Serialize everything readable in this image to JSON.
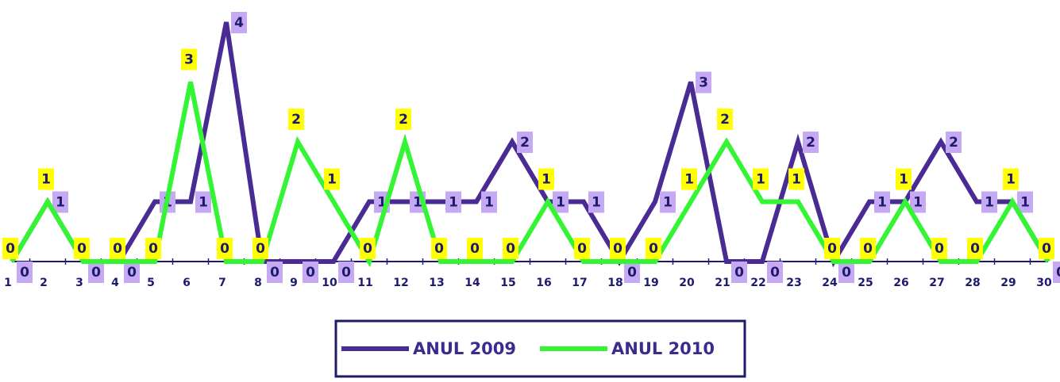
{
  "chart_data": {
    "type": "line",
    "categories": [
      "1",
      "2",
      "3",
      "4",
      "5",
      "6",
      "7",
      "8",
      "9",
      "10",
      "11",
      "12",
      "13",
      "14",
      "15",
      "16",
      "17",
      "18",
      "19",
      "20",
      "21",
      "22",
      "23",
      "24",
      "25",
      "26",
      "27",
      "28",
      "29",
      "30"
    ],
    "series": [
      {
        "name": "ANUL 2009",
        "color": "#4a2b94",
        "label_color": "#c6a9f3",
        "values": [
          0,
          1,
          0,
          0,
          1,
          1,
          4,
          0,
          0,
          0,
          1,
          1,
          1,
          1,
          2,
          1,
          1,
          0,
          1,
          3,
          0,
          0,
          2,
          0,
          1,
          1,
          2,
          1,
          1,
          0
        ]
      },
      {
        "name": "ANUL 2010",
        "color": "#33f533",
        "label_color": "#ffff00",
        "values": [
          0,
          1,
          0,
          0,
          0,
          3,
          0,
          0,
          2,
          1,
          0,
          2,
          0,
          0,
          0,
          1,
          0,
          0,
          0,
          1,
          2,
          1,
          1,
          0,
          0,
          1,
          0,
          0,
          1,
          0
        ]
      }
    ],
    "ylim": [
      0,
      4
    ]
  }
}
